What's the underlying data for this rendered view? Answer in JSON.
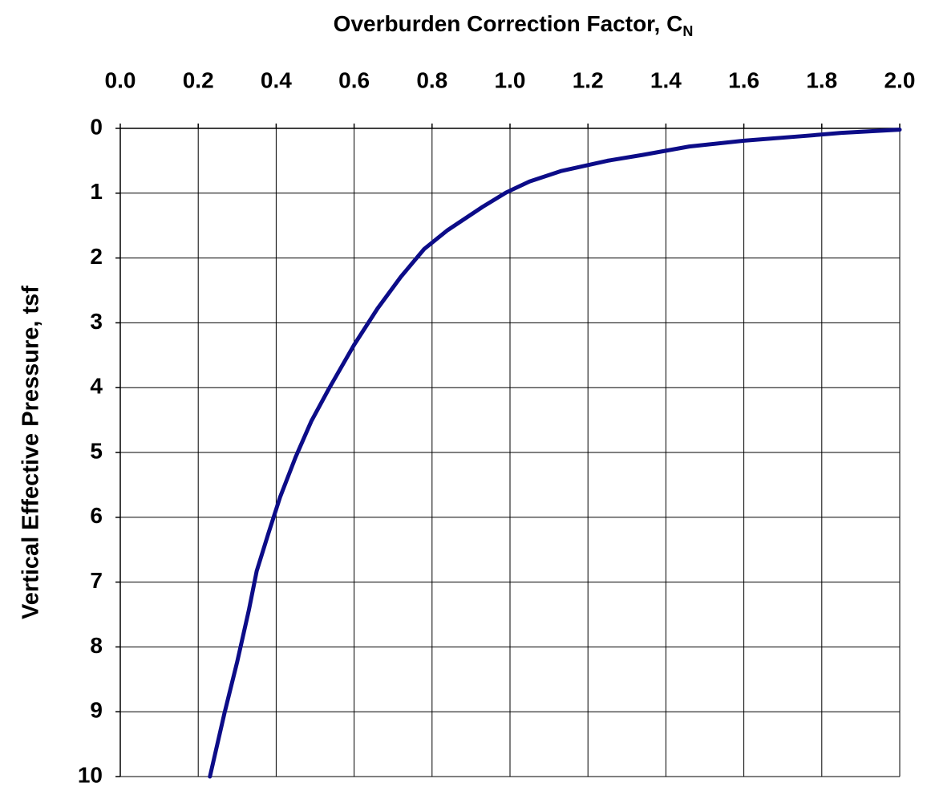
{
  "chart_data": {
    "type": "line",
    "title": "Overburden Correction Factor, C",
    "title_subscript": "N",
    "y_label": "Vertical Effective Pressure, tsf",
    "x_axis_position": "top",
    "y_inverted": true,
    "grid": true,
    "xlim": [
      0,
      2.0
    ],
    "ylim": [
      0,
      10
    ],
    "xticks": [
      {
        "value": 0,
        "label": "0.0"
      },
      0.2,
      0.4,
      0.6,
      0.8,
      {
        "value": 1,
        "label": "1.0"
      },
      1.2,
      1.4,
      1.6,
      1.8,
      {
        "value": 2,
        "label": "2.0"
      }
    ],
    "yticks": [
      0,
      1,
      2,
      3,
      4,
      5,
      6,
      7,
      8,
      9,
      10
    ],
    "series": [
      {
        "color": "#0c0c88",
        "x": [
          2.0,
          1.85,
          1.75,
          1.6,
          1.46,
          1.34,
          1.25,
          1.13,
          1.05,
          0.99,
          0.93,
          0.84,
          0.78,
          0.72,
          0.66,
          0.6,
          0.535,
          0.49,
          0.45,
          0.41,
          0.38,
          0.35,
          0.33,
          0.3,
          0.267,
          0.23
        ],
        "values": [
          0.02,
          0.07,
          0.12,
          0.19,
          0.28,
          0.41,
          0.5,
          0.66,
          0.82,
          0.99,
          1.21,
          1.57,
          1.86,
          2.29,
          2.78,
          3.34,
          4.02,
          4.52,
          5.07,
          5.69,
          6.25,
          6.83,
          7.43,
          8.23,
          9.03,
          10
        ]
      }
    ]
  }
}
